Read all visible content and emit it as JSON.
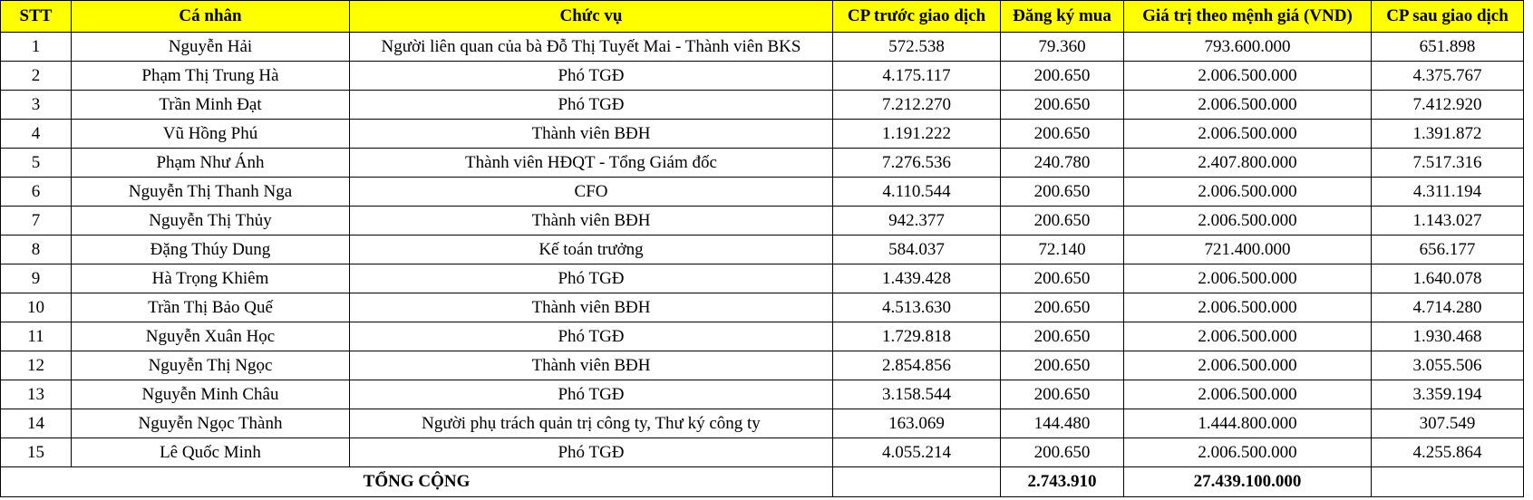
{
  "headers": {
    "stt": "STT",
    "name": "Cá nhân",
    "role": "Chức vụ",
    "before": "CP trước giao dịch",
    "registered": "Đăng ký mua",
    "value": "Giá trị theo mệnh giá (VND)",
    "after": "CP sau giao dịch"
  },
  "colors": {
    "header_bg": "#ffff00"
  },
  "rows": [
    {
      "stt": "1",
      "name": "Nguyễn Hải",
      "role": "Người liên quan của bà Đỗ Thị Tuyết Mai - Thành viên BKS",
      "before": "572.538",
      "registered": "79.360",
      "value": "793.600.000",
      "after": "651.898"
    },
    {
      "stt": "2",
      "name": "Phạm Thị Trung Hà",
      "role": "Phó TGĐ",
      "before": "4.175.117",
      "registered": "200.650",
      "value": "2.006.500.000",
      "after": "4.375.767"
    },
    {
      "stt": "3",
      "name": "Trần Minh Đạt",
      "role": "Phó TGĐ",
      "before": "7.212.270",
      "registered": "200.650",
      "value": "2.006.500.000",
      "after": "7.412.920"
    },
    {
      "stt": "4",
      "name": "Vũ Hồng Phú",
      "role": "Thành viên BĐH",
      "before": "1.191.222",
      "registered": "200.650",
      "value": "2.006.500.000",
      "after": "1.391.872"
    },
    {
      "stt": "5",
      "name": "Phạm Như Ánh",
      "role": "Thành viên HĐQT - Tổng Giám đốc",
      "before": "7.276.536",
      "registered": "240.780",
      "value": "2.407.800.000",
      "after": "7.517.316"
    },
    {
      "stt": "6",
      "name": "Nguyễn Thị Thanh Nga",
      "role": "CFO",
      "before": "4.110.544",
      "registered": "200.650",
      "value": "2.006.500.000",
      "after": "4.311.194"
    },
    {
      "stt": "7",
      "name": "Nguyễn Thị Thủy",
      "role": "Thành viên BĐH",
      "before": "942.377",
      "registered": "200.650",
      "value": "2.006.500.000",
      "after": "1.143.027"
    },
    {
      "stt": "8",
      "name": "Đặng Thúy Dung",
      "role": "Kế toán trưởng",
      "before": "584.037",
      "registered": "72.140",
      "value": "721.400.000",
      "after": "656.177"
    },
    {
      "stt": "9",
      "name": "Hà Trọng Khiêm",
      "role": "Phó TGĐ",
      "before": "1.439.428",
      "registered": "200.650",
      "value": "2.006.500.000",
      "after": "1.640.078"
    },
    {
      "stt": "10",
      "name": "Trần Thị Bảo Quế",
      "role": "Thành viên BĐH",
      "before": "4.513.630",
      "registered": "200.650",
      "value": "2.006.500.000",
      "after": "4.714.280"
    },
    {
      "stt": "11",
      "name": "Nguyễn Xuân Học",
      "role": "Phó TGĐ",
      "before": "1.729.818",
      "registered": "200.650",
      "value": "2.006.500.000",
      "after": "1.930.468"
    },
    {
      "stt": "12",
      "name": "Nguyễn Thị Ngọc",
      "role": "Thành viên BĐH",
      "before": "2.854.856",
      "registered": "200.650",
      "value": "2.006.500.000",
      "after": "3.055.506"
    },
    {
      "stt": "13",
      "name": "Nguyễn Minh Châu",
      "role": "Phó TGĐ",
      "before": "3.158.544",
      "registered": "200.650",
      "value": "2.006.500.000",
      "after": "3.359.194"
    },
    {
      "stt": "14",
      "name": "Nguyễn Ngọc Thành",
      "role": "Người phụ trách quản trị công ty, Thư ký công ty",
      "before": "163.069",
      "registered": "144.480",
      "value": "1.444.800.000",
      "after": "307.549"
    },
    {
      "stt": "15",
      "name": "Lê Quốc Minh",
      "role": "Phó TGĐ",
      "before": "4.055.214",
      "registered": "200.650",
      "value": "2.006.500.000",
      "after": "4.255.864"
    }
  ],
  "total": {
    "label": "TỔNG CỘNG",
    "before": "",
    "registered": "2.743.910",
    "value": "27.439.100.000",
    "after": ""
  }
}
